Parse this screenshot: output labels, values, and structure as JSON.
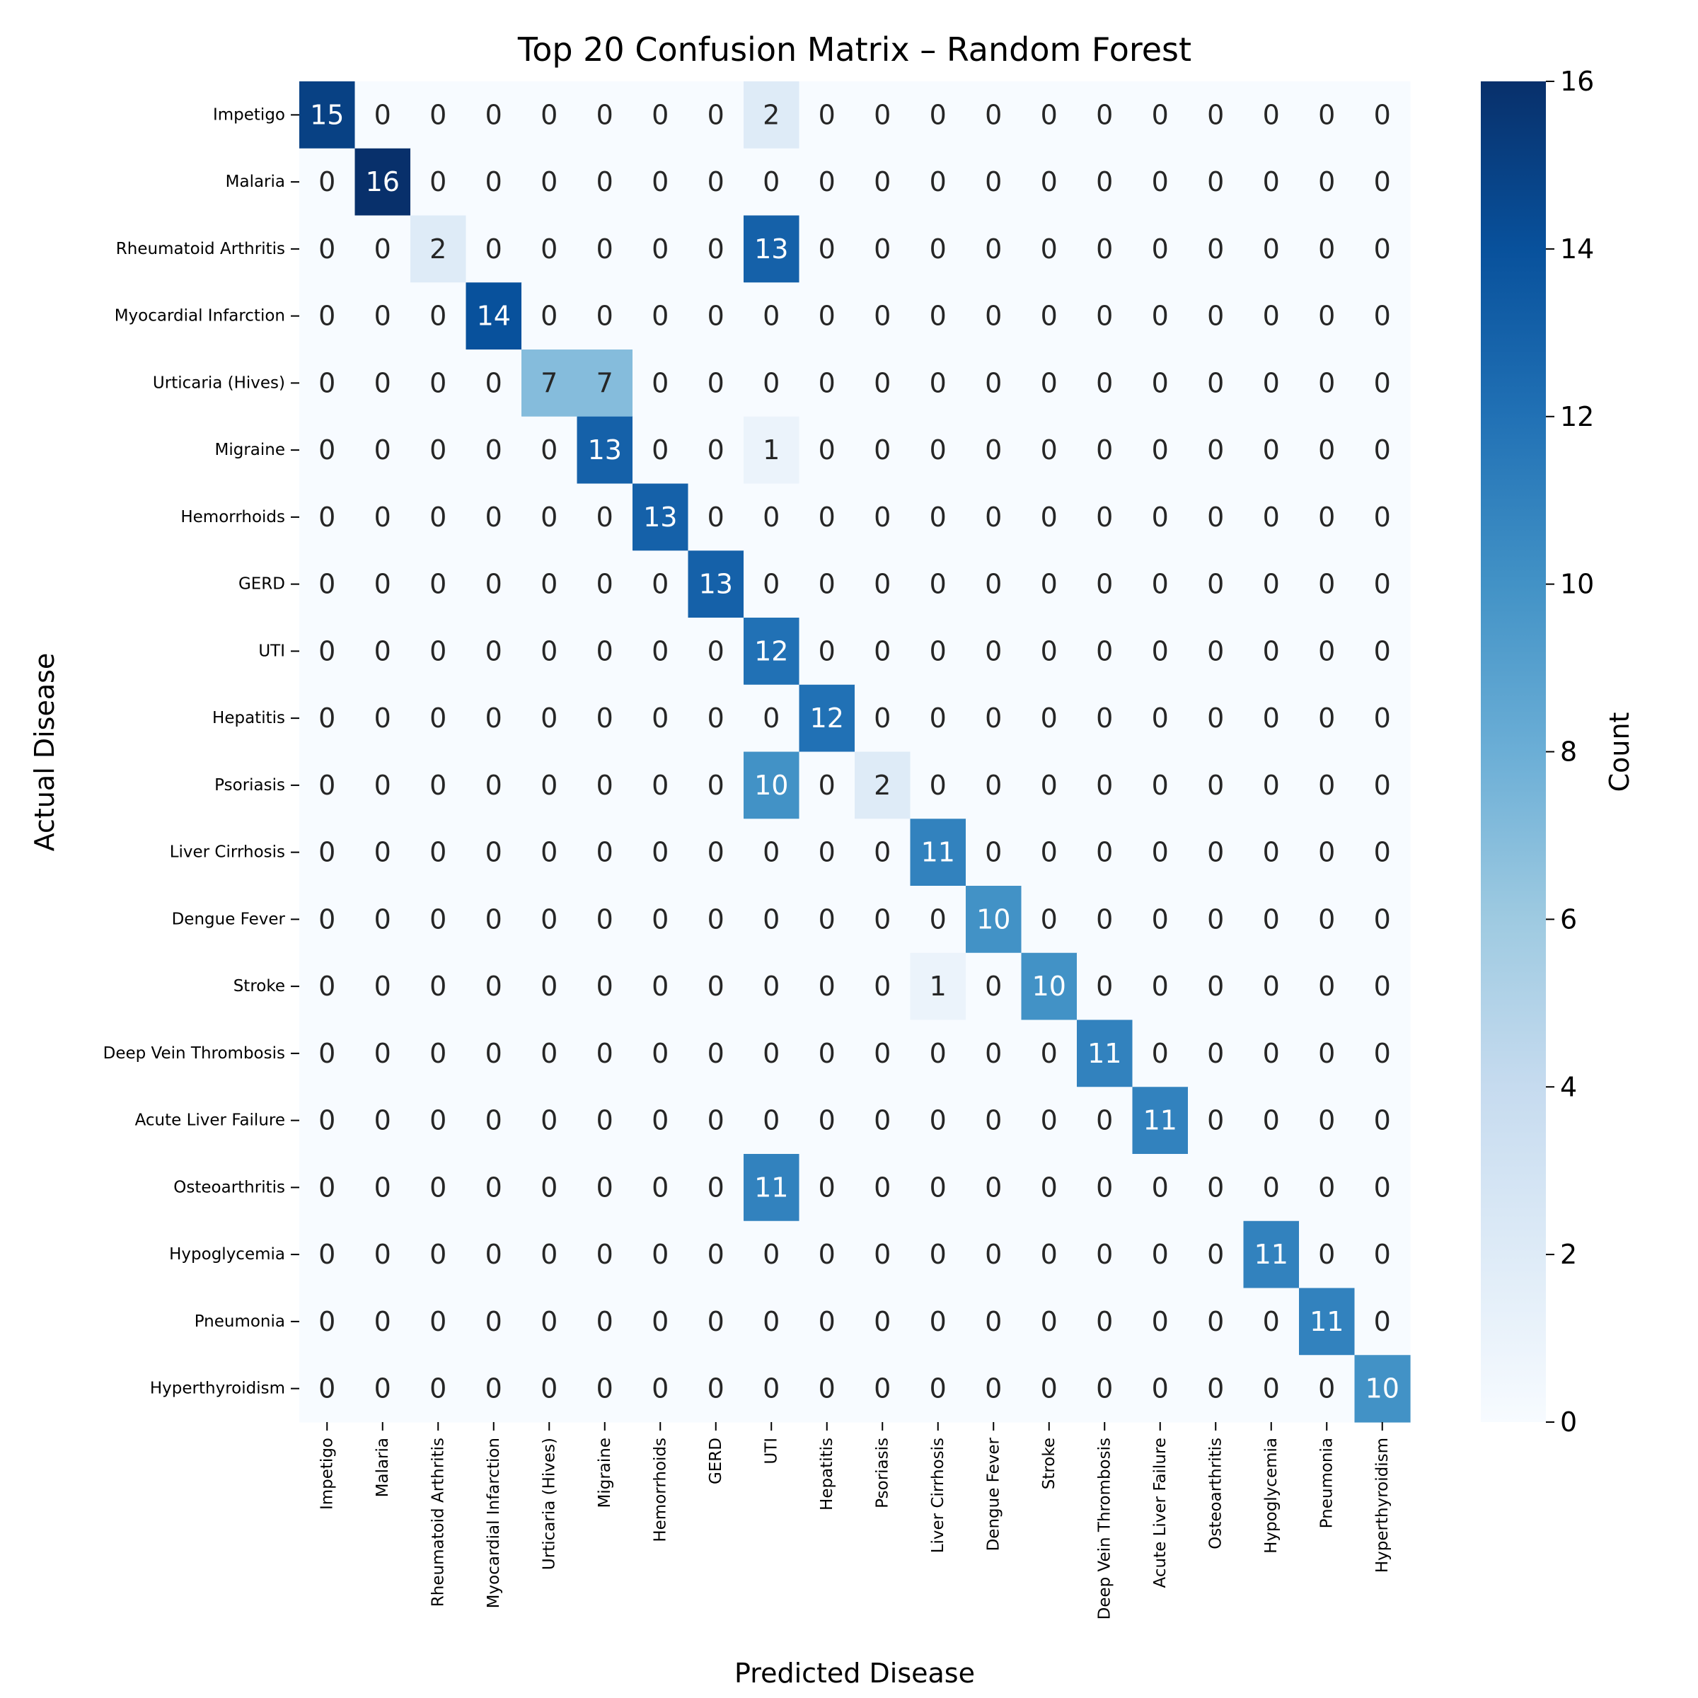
{
  "chart_data": {
    "type": "heatmap",
    "title": "Top 20 Confusion Matrix – Random Forest",
    "xlabel": "Predicted Disease",
    "ylabel": "Actual Disease",
    "colorbar_label": "Count",
    "colormap": "Blues",
    "value_range": [
      0,
      16
    ],
    "colorbar_ticks": [
      "0",
      "2",
      "4",
      "6",
      "8",
      "10",
      "12",
      "14",
      "16"
    ],
    "labels": [
      "Impetigo",
      "Malaria",
      "Rheumatoid Arthritis",
      "Myocardial Infarction",
      "Urticaria (Hives)",
      "Migraine",
      "Hemorrhoids",
      "GERD",
      "UTI",
      "Hepatitis",
      "Psoriasis",
      "Liver Cirrhosis",
      "Dengue Fever",
      "Stroke",
      "Deep Vein Thrombosis",
      "Acute Liver Failure",
      "Osteoarthritis",
      "Hypoglycemia",
      "Pneumonia",
      "Hyperthyroidism"
    ],
    "matrix": [
      [
        15,
        0,
        0,
        0,
        0,
        0,
        0,
        0,
        2,
        0,
        0,
        0,
        0,
        0,
        0,
        0,
        0,
        0,
        0,
        0
      ],
      [
        0,
        16,
        0,
        0,
        0,
        0,
        0,
        0,
        0,
        0,
        0,
        0,
        0,
        0,
        0,
        0,
        0,
        0,
        0,
        0
      ],
      [
        0,
        0,
        2,
        0,
        0,
        0,
        0,
        0,
        13,
        0,
        0,
        0,
        0,
        0,
        0,
        0,
        0,
        0,
        0,
        0
      ],
      [
        0,
        0,
        0,
        14,
        0,
        0,
        0,
        0,
        0,
        0,
        0,
        0,
        0,
        0,
        0,
        0,
        0,
        0,
        0,
        0
      ],
      [
        0,
        0,
        0,
        0,
        7,
        7,
        0,
        0,
        0,
        0,
        0,
        0,
        0,
        0,
        0,
        0,
        0,
        0,
        0,
        0
      ],
      [
        0,
        0,
        0,
        0,
        0,
        13,
        0,
        0,
        1,
        0,
        0,
        0,
        0,
        0,
        0,
        0,
        0,
        0,
        0,
        0
      ],
      [
        0,
        0,
        0,
        0,
        0,
        0,
        13,
        0,
        0,
        0,
        0,
        0,
        0,
        0,
        0,
        0,
        0,
        0,
        0,
        0
      ],
      [
        0,
        0,
        0,
        0,
        0,
        0,
        0,
        13,
        0,
        0,
        0,
        0,
        0,
        0,
        0,
        0,
        0,
        0,
        0,
        0
      ],
      [
        0,
        0,
        0,
        0,
        0,
        0,
        0,
        0,
        12,
        0,
        0,
        0,
        0,
        0,
        0,
        0,
        0,
        0,
        0,
        0
      ],
      [
        0,
        0,
        0,
        0,
        0,
        0,
        0,
        0,
        0,
        12,
        0,
        0,
        0,
        0,
        0,
        0,
        0,
        0,
        0,
        0
      ],
      [
        0,
        0,
        0,
        0,
        0,
        0,
        0,
        0,
        10,
        0,
        2,
        0,
        0,
        0,
        0,
        0,
        0,
        0,
        0,
        0
      ],
      [
        0,
        0,
        0,
        0,
        0,
        0,
        0,
        0,
        0,
        0,
        0,
        11,
        0,
        0,
        0,
        0,
        0,
        0,
        0,
        0
      ],
      [
        0,
        0,
        0,
        0,
        0,
        0,
        0,
        0,
        0,
        0,
        0,
        0,
        10,
        0,
        0,
        0,
        0,
        0,
        0,
        0
      ],
      [
        0,
        0,
        0,
        0,
        0,
        0,
        0,
        0,
        0,
        0,
        0,
        1,
        0,
        10,
        0,
        0,
        0,
        0,
        0,
        0
      ],
      [
        0,
        0,
        0,
        0,
        0,
        0,
        0,
        0,
        0,
        0,
        0,
        0,
        0,
        0,
        11,
        0,
        0,
        0,
        0,
        0
      ],
      [
        0,
        0,
        0,
        0,
        0,
        0,
        0,
        0,
        0,
        0,
        0,
        0,
        0,
        0,
        0,
        11,
        0,
        0,
        0,
        0
      ],
      [
        0,
        0,
        0,
        0,
        0,
        0,
        0,
        0,
        11,
        0,
        0,
        0,
        0,
        0,
        0,
        0,
        0,
        0,
        0,
        0
      ],
      [
        0,
        0,
        0,
        0,
        0,
        0,
        0,
        0,
        0,
        0,
        0,
        0,
        0,
        0,
        0,
        0,
        0,
        11,
        0,
        0
      ],
      [
        0,
        0,
        0,
        0,
        0,
        0,
        0,
        0,
        0,
        0,
        0,
        0,
        0,
        0,
        0,
        0,
        0,
        0,
        11,
        0
      ],
      [
        0,
        0,
        0,
        0,
        0,
        0,
        0,
        0,
        0,
        0,
        0,
        0,
        0,
        0,
        0,
        0,
        0,
        0,
        0,
        10
      ]
    ]
  }
}
